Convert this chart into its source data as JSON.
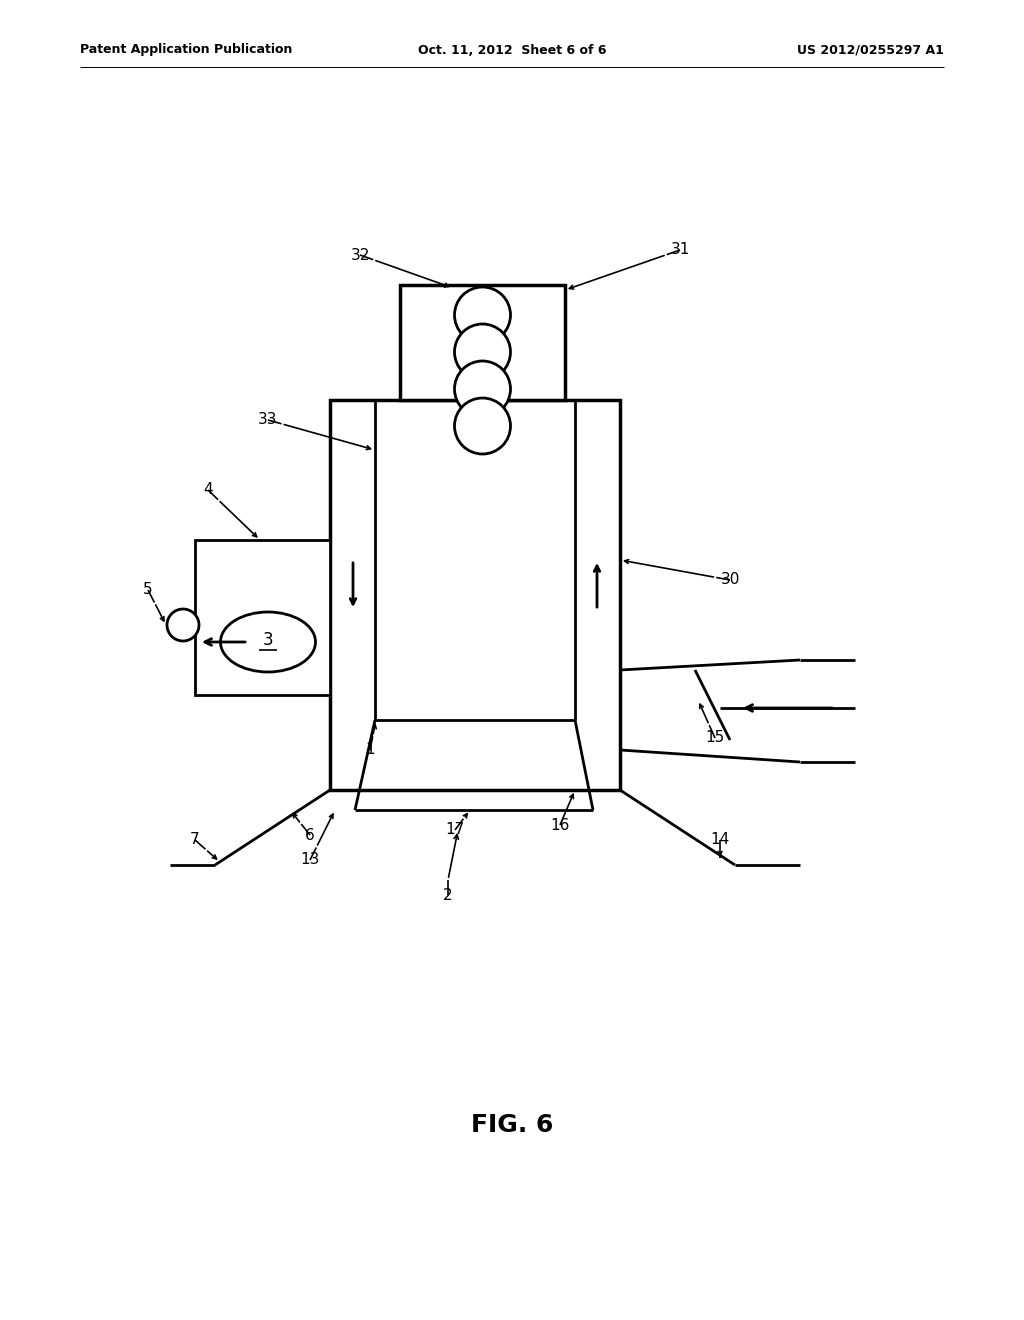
{
  "bg_color": "#ffffff",
  "line_color": "#000000",
  "header_left": "Patent Application Publication",
  "header_mid": "Oct. 11, 2012  Sheet 6 of 6",
  "header_right": "US 2012/0255297 A1",
  "figure_label": "FIG. 6",
  "lw": 2.0
}
